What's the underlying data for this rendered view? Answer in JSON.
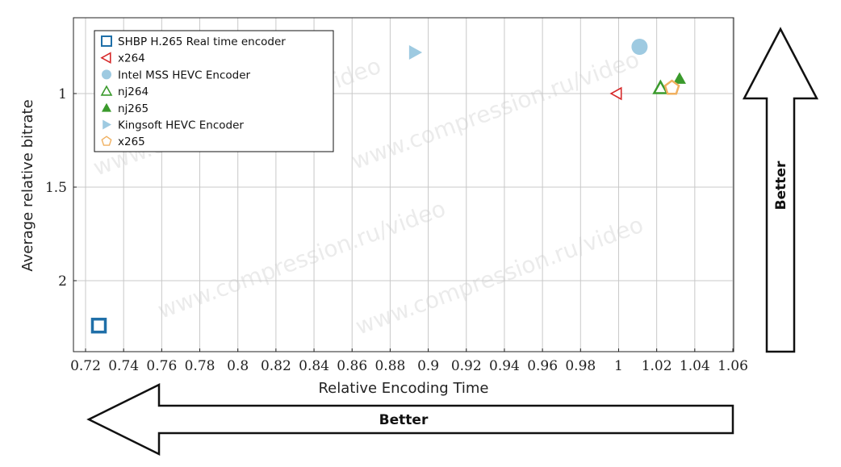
{
  "chart_data": {
    "type": "scatter",
    "xlabel": "Relative Encoding Time",
    "ylabel": "Average relative bitrate",
    "xlim": [
      0.715,
      1.065
    ],
    "ylim": [
      2.38,
      0.6
    ],
    "y_inverted": true,
    "xticks": [
      0.72,
      0.74,
      0.76,
      0.78,
      0.8,
      0.82,
      0.84,
      0.86,
      0.88,
      0.9,
      0.92,
      0.94,
      0.96,
      0.98,
      1,
      1.02,
      1.04,
      1.06
    ],
    "xtick_labels": [
      "0.72",
      "0.74",
      "0.76",
      "0.78",
      "0.8",
      "0.82",
      "0.84",
      "0.86",
      "0.88",
      "0.9",
      "0.92",
      "0.94",
      "0.96",
      "0.98",
      "1",
      "1.02",
      "1.04",
      "1.06"
    ],
    "yticks": [
      1,
      1.5,
      2
    ],
    "ytick_labels": [
      "1",
      "1.5",
      "2"
    ],
    "grid": true,
    "legend_position": "top-left",
    "series": [
      {
        "name": "SHBP H.265 Real time encoder",
        "marker": "square-open",
        "color": "#1f6fa8",
        "points": [
          {
            "x": 0.727,
            "y": 2.24
          }
        ]
      },
      {
        "name": "x264",
        "marker": "triangle-left-open",
        "color": "#d62728",
        "points": [
          {
            "x": 0.999,
            "y": 1.0
          }
        ]
      },
      {
        "name": "Intel MSS HEVC Encoder",
        "marker": "circle-filled",
        "color": "#9ecae1",
        "points": [
          {
            "x": 1.011,
            "y": 0.75
          }
        ]
      },
      {
        "name": "nj264",
        "marker": "triangle-up-open",
        "color": "#3a9a2c",
        "points": [
          {
            "x": 1.022,
            "y": 0.97
          }
        ]
      },
      {
        "name": "nj265",
        "marker": "triangle-up-filled",
        "color": "#3a9a2c",
        "points": [
          {
            "x": 1.032,
            "y": 0.92
          }
        ]
      },
      {
        "name": "Kingsoft HEVC Encoder",
        "marker": "triangle-right-filled",
        "color": "#9ecae1",
        "points": [
          {
            "x": 0.893,
            "y": 0.78
          }
        ]
      },
      {
        "name": "x265",
        "marker": "pentagon-open",
        "color": "#f0b060",
        "points": [
          {
            "x": 1.028,
            "y": 0.97
          }
        ]
      }
    ]
  },
  "arrows": {
    "horizontal_label": "Better",
    "vertical_label": "Better"
  },
  "watermark_text": "www.compression.ru/video"
}
